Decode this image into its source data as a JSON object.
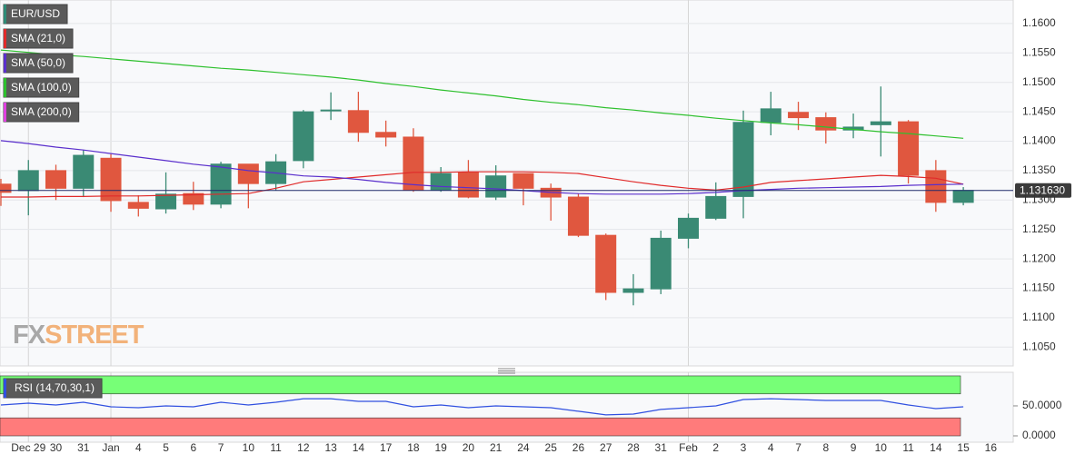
{
  "chart_data": [
    {
      "type": "candlestick",
      "symbol": "EUR/USD",
      "symbol_color": "#2e8b77",
      "categories": [
        null,
        "Dec 29",
        "30",
        "31",
        "Jan",
        "4",
        "5",
        "6",
        "7",
        "10",
        "11",
        "12",
        "13",
        "14",
        "17",
        "18",
        "19",
        "20",
        "21",
        "24",
        "25",
        "26",
        "27",
        "28",
        "31",
        "Feb",
        "2",
        "3",
        "4",
        "7",
        "8",
        "9",
        "10",
        "11",
        "14",
        "15",
        "16"
      ],
      "open": [
        1.1327,
        1.1316,
        1.135,
        1.132,
        1.1371,
        1.1296,
        1.1285,
        1.1311,
        1.1293,
        1.1361,
        1.1328,
        1.1367,
        1.1452,
        1.1452,
        1.1415,
        1.1407,
        1.1317,
        1.1347,
        1.1305,
        1.1345,
        1.132,
        1.1305,
        1.124,
        1.1143,
        1.1149,
        1.1235,
        1.1269,
        1.1306,
        1.1432,
        1.1449,
        1.144,
        1.1419,
        1.1428,
        1.1433,
        1.135,
        1.1296,
        null
      ],
      "high": [
        1.1336,
        1.1368,
        1.136,
        1.1385,
        1.1378,
        1.1308,
        1.1347,
        1.1331,
        1.1365,
        1.1361,
        1.1378,
        1.1453,
        1.1483,
        1.1484,
        1.1435,
        1.1422,
        1.1356,
        1.1368,
        1.1359,
        1.1345,
        1.1328,
        1.1311,
        1.1243,
        1.1174,
        1.1248,
        1.1277,
        1.133,
        1.1452,
        1.1484,
        1.1467,
        1.1449,
        1.1447,
        1.1493,
        1.1436,
        1.1368,
        1.1322,
        null
      ],
      "low": [
        1.129,
        1.1274,
        1.13,
        1.1305,
        1.128,
        1.1272,
        1.1277,
        1.1283,
        1.1286,
        1.1286,
        1.1316,
        1.1354,
        1.1436,
        1.1399,
        1.1391,
        1.1314,
        1.1314,
        1.1303,
        1.13,
        1.1291,
        1.1265,
        1.1237,
        1.113,
        1.1121,
        1.114,
        1.1218,
        1.1266,
        1.1269,
        1.141,
        1.1419,
        1.1396,
        1.1405,
        1.1374,
        1.1328,
        1.128,
        1.1291,
        null
      ],
      "close": [
        1.1313,
        1.135,
        1.132,
        1.1376,
        1.1299,
        1.1286,
        1.131,
        1.1293,
        1.1361,
        1.1328,
        1.1365,
        1.145,
        1.1453,
        1.1415,
        1.1407,
        1.1317,
        1.1345,
        1.1305,
        1.1341,
        1.132,
        1.1305,
        1.124,
        1.1143,
        1.1149,
        1.1235,
        1.1269,
        1.1306,
        1.1432,
        1.1455,
        1.144,
        1.1419,
        1.1424,
        1.1433,
        1.1342,
        1.1296,
        1.13163,
        null
      ],
      "up_color": "#3a8a74",
      "down_color": "#e0573f",
      "series": [
        {
          "name": "SMA (21,0)",
          "color": "#e02a2a",
          "values": [
            1.1305,
            1.1305,
            1.1306,
            1.1306,
            1.1307,
            1.1307,
            1.1308,
            1.1309,
            1.131,
            1.1311,
            1.132,
            1.1331,
            1.1335,
            1.1339,
            1.1343,
            1.1347,
            1.1347,
            1.1348,
            1.1348,
            1.1348,
            1.1347,
            1.1345,
            1.1338,
            1.1331,
            1.1325,
            1.132,
            1.1317,
            1.1322,
            1.133,
            1.1333,
            1.1336,
            1.1339,
            1.1342,
            1.134,
            1.1337,
            1.1327,
            null
          ]
        },
        {
          "name": "SMA (50,0)",
          "color": "#5a2fcc",
          "values": [
            1.1401,
            1.1396,
            1.139,
            1.1385,
            1.1379,
            1.1373,
            1.1367,
            1.1361,
            1.1356,
            1.135,
            1.1346,
            1.1341,
            1.1339,
            1.1335,
            1.133,
            1.1326,
            1.1323,
            1.1321,
            1.1319,
            1.1316,
            1.1313,
            1.1311,
            1.131,
            1.131,
            1.131,
            1.1311,
            1.1313,
            1.1316,
            1.1318,
            1.132,
            1.1321,
            1.1322,
            1.1323,
            1.1325,
            1.1326,
            1.1327,
            null
          ]
        },
        {
          "name": "SMA (100,0)",
          "color": "#2ec02e",
          "values": [
            1.1555,
            1.1551,
            1.1547,
            1.1544,
            1.154,
            1.1536,
            1.1532,
            1.1528,
            1.1524,
            1.1521,
            1.1517,
            1.1513,
            1.1509,
            1.1504,
            1.1498,
            1.1493,
            1.1487,
            1.1482,
            1.1477,
            1.1471,
            1.1466,
            1.1462,
            1.1457,
            1.1453,
            1.1448,
            1.1444,
            1.1439,
            1.1435,
            1.1431,
            1.1428,
            1.1424,
            1.142,
            1.1416,
            1.1413,
            1.1409,
            1.1405,
            null
          ]
        },
        {
          "name": "SMA (200,0)",
          "color": "#e040e0"
        }
      ],
      "last_price": {
        "value": 1.13163,
        "label": "1.131630"
      },
      "ylim": [
        1.1018,
        1.164
      ],
      "yticks": [
        {
          "value": 1.105,
          "label": "1.1050"
        },
        {
          "value": 1.11,
          "label": "1.1100"
        },
        {
          "value": 1.115,
          "label": "1.1150"
        },
        {
          "value": 1.12,
          "label": "1.1200"
        },
        {
          "value": 1.125,
          "label": "1.1250"
        },
        {
          "value": 1.13,
          "label": "1.1300"
        },
        {
          "value": 1.135,
          "label": "1.1350"
        },
        {
          "value": 1.14,
          "label": "1.1400"
        },
        {
          "value": 1.145,
          "label": "1.1450"
        },
        {
          "value": 1.15,
          "label": "1.1500"
        },
        {
          "value": 1.155,
          "label": "1.1550"
        },
        {
          "value": 1.16,
          "label": "1.1600"
        }
      ],
      "grid": true,
      "watermark": [
        "FX",
        "STREET"
      ]
    },
    {
      "type": "line",
      "name": "RSI (14,70,30,1)",
      "color": "#3050e0",
      "values": [
        51.5,
        54.5,
        51.5,
        56,
        48.5,
        47,
        50,
        48.5,
        56,
        51.5,
        56,
        62,
        62,
        57.6,
        57.6,
        48.5,
        51.5,
        47,
        50,
        48.5,
        47,
        41,
        35,
        36.4,
        44,
        47,
        50,
        60.6,
        62,
        60.6,
        59,
        59,
        59,
        51.5,
        45.5,
        48.5,
        null
      ],
      "bands": [
        {
          "from": 70,
          "to": 100,
          "color": "#77ff77"
        },
        {
          "from": 0,
          "to": 30,
          "color": "#ff7b7b"
        }
      ],
      "ylim": [
        -10.6,
        106
      ],
      "yticks": [
        {
          "value": 0,
          "label": "0.0000"
        },
        {
          "value": 50,
          "label": "50.0000"
        }
      ]
    }
  ]
}
